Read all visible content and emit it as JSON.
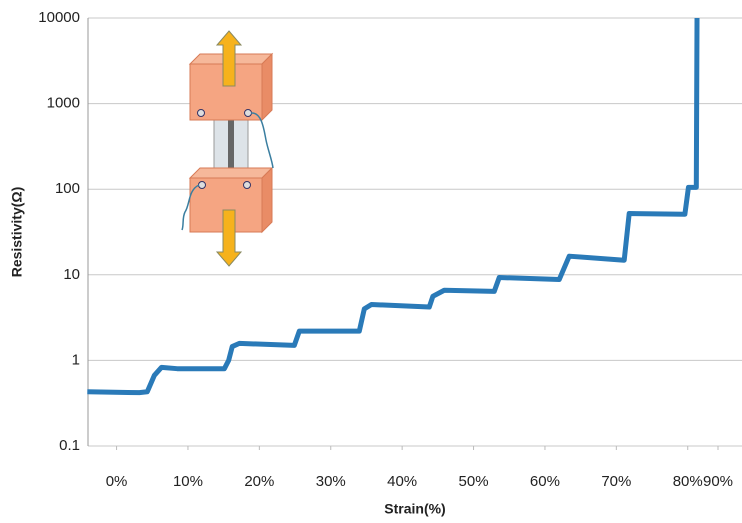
{
  "chart_data": {
    "type": "line",
    "x_label": "Strain(%)",
    "y_label": "Resistivity(Ω)",
    "log_y": true,
    "grid": true,
    "ylim": [
      0.1,
      10000
    ],
    "yticks": [
      0.1,
      1,
      10,
      100,
      1000,
      10000
    ],
    "xlim": [
      -4,
      87.6
    ],
    "xticks": [
      {
        "value": 0,
        "label": "0%"
      },
      {
        "value": 10,
        "label": "10%"
      },
      {
        "value": 20,
        "label": "20%"
      },
      {
        "value": 30,
        "label": "30%"
      },
      {
        "value": 40,
        "label": "40%"
      },
      {
        "value": 50,
        "label": "50%"
      },
      {
        "value": 60,
        "label": "60%"
      },
      {
        "value": 70,
        "label": "70%"
      },
      {
        "value": 80,
        "label": "80%"
      },
      {
        "value": 90,
        "label": "90%"
      }
    ],
    "x": [
      -4.1,
      3.2,
      4.3,
      5.3,
      6.3,
      8.5,
      15.1,
      15.7,
      16.2,
      17.2,
      24.9,
      25.6,
      34.0,
      34.7,
      35.7,
      43.8,
      44.3,
      45.9,
      52.9,
      53.6,
      62.0,
      63.4,
      71.1,
      71.8,
      79.6,
      80.1,
      81.2,
      81.3
    ],
    "series": [
      {
        "color": "#2a7ab8",
        "values": [
          0.43,
          0.42,
          0.43,
          0.67,
          0.83,
          0.8,
          0.8,
          1.0,
          1.45,
          1.58,
          1.5,
          2.2,
          2.2,
          4.0,
          4.5,
          4.2,
          5.6,
          6.6,
          6.4,
          9.3,
          8.8,
          16.5,
          14.8,
          52,
          51,
          105,
          105,
          10000
        ]
      }
    ]
  }
}
